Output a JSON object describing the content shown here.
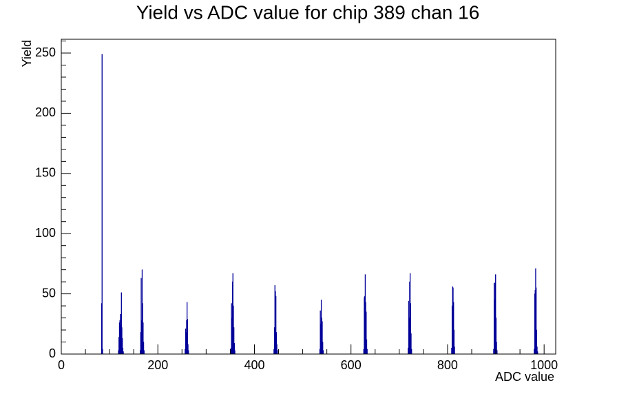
{
  "chart_data": {
    "type": "histogram",
    "title": "Yield vs ADC value for chip 389 chan 16",
    "x_label": "ADC value",
    "y_label": "Yield",
    "color": "#000099",
    "xlim": [
      0,
      1024
    ],
    "ylim": [
      0,
      261.45
    ],
    "xticks": [
      0,
      200,
      400,
      600,
      800,
      1000
    ],
    "yticks": [
      0,
      50,
      100,
      150,
      200,
      250
    ],
    "xminorticks": [
      50,
      100,
      150,
      250,
      300,
      350,
      450,
      500,
      550,
      650,
      700,
      750,
      850,
      900,
      950
    ],
    "yminorticks": [
      10,
      20,
      30,
      40,
      60,
      70,
      80,
      90,
      110,
      120,
      130,
      140,
      160,
      170,
      180,
      190,
      210,
      220,
      230,
      240,
      260
    ],
    "bins": [
      0,
      83,
      84,
      85,
      86,
      118,
      119,
      120,
      121,
      122,
      123,
      124,
      125,
      126,
      127,
      128,
      129,
      163,
      164,
      165,
      166,
      167,
      168,
      169,
      170,
      171,
      172,
      256,
      257,
      258,
      259,
      260,
      261,
      262,
      263,
      264,
      351,
      352,
      353,
      354,
      355,
      356,
      357,
      358,
      359,
      360,
      440,
      441,
      442,
      443,
      444,
      445,
      446,
      447,
      448,
      535,
      536,
      537,
      538,
      539,
      540,
      541,
      542,
      543,
      626,
      627,
      628,
      629,
      630,
      631,
      632,
      633,
      634,
      718,
      719,
      720,
      721,
      722,
      723,
      724,
      725,
      726,
      808,
      809,
      810,
      811,
      812,
      813,
      814,
      815,
      895,
      896,
      897,
      898,
      899,
      900,
      901,
      902,
      903,
      979,
      980,
      981,
      982,
      983,
      984,
      985,
      986,
      987,
      1024
    ],
    "counts": [
      0,
      42,
      249,
      4,
      0,
      3,
      14,
      26,
      28,
      33,
      24,
      51,
      22,
      13,
      5,
      2,
      0,
      3,
      18,
      63,
      28,
      70,
      42,
      26,
      10,
      3,
      0,
      4,
      21,
      18,
      28,
      43,
      29,
      8,
      3,
      0,
      5,
      42,
      30,
      60,
      67,
      40,
      22,
      9,
      3,
      0,
      4,
      22,
      57,
      52,
      48,
      18,
      8,
      3,
      0,
      4,
      36,
      25,
      45,
      30,
      27,
      10,
      3,
      0,
      4,
      47,
      48,
      66,
      43,
      35,
      12,
      4,
      0,
      5,
      44,
      30,
      60,
      67,
      42,
      17,
      4,
      0,
      5,
      40,
      56,
      55,
      43,
      20,
      6,
      0,
      4,
      59,
      45,
      59,
      66,
      30,
      10,
      3,
      0,
      4,
      50,
      53,
      71,
      55,
      20,
      6,
      2,
      0
    ]
  }
}
